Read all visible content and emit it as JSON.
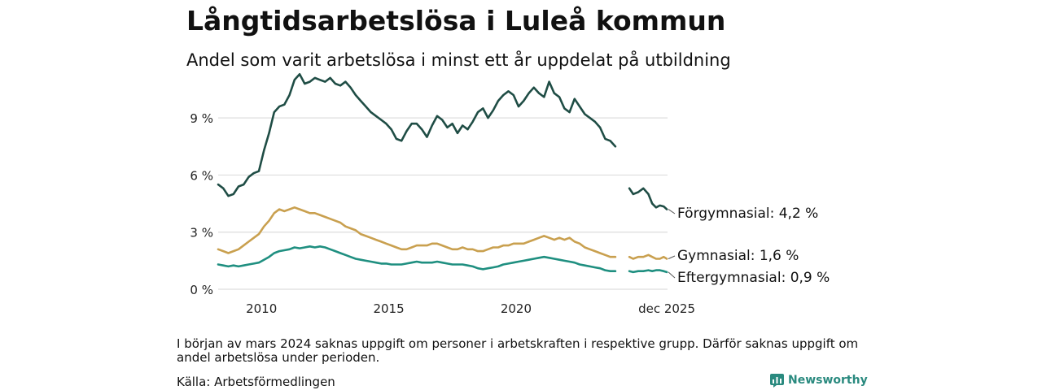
{
  "header": {
    "title": "Långtidsarbetslösa i Luleå kommun",
    "subtitle": "Andel som varit arbetslösa i minst ett år uppdelat på utbildning"
  },
  "footer": {
    "note": "I början av mars 2024 saknas uppgift om personer i arbetskraften i respektive grupp. Därför saknas uppgift om andel arbetslösa under perioden.",
    "source": "Källa: Arbetsförmedlingen",
    "brand": "Newsworthy"
  },
  "colors": {
    "forgymnasial": "#1f4d45",
    "gymnasial": "#c9a04f",
    "eftergymnasial": "#1f8f80",
    "grid": "#dddddd",
    "brand": "#2a8a7f"
  },
  "chart_data": {
    "type": "line",
    "title": "Långtidsarbetslösa i Luleå kommun",
    "xlabel": "",
    "ylabel": "",
    "xlim": [
      2008.3,
      2025.95
    ],
    "ylim": [
      0,
      10.5
    ],
    "y_ticks": [
      {
        "value": 0,
        "label": "0 %"
      },
      {
        "value": 3,
        "label": "3 %"
      },
      {
        "value": 6,
        "label": "6 %"
      },
      {
        "value": 9,
        "label": "9 %"
      }
    ],
    "x_ticks": [
      {
        "value": 2010,
        "label": "2010"
      },
      {
        "value": 2015,
        "label": "2015"
      },
      {
        "value": 2020,
        "label": "2020"
      },
      {
        "value": 2025.92,
        "label": "dec 2025"
      }
    ],
    "gap": [
      2024.05,
      2024.4
    ],
    "series": [
      {
        "name": "Förgymnasial",
        "end_label": "Förgymnasial: 4,2 %",
        "color_key": "forgymnasial",
        "points": [
          [
            2008.3,
            5.5
          ],
          [
            2008.5,
            5.3
          ],
          [
            2008.7,
            4.9
          ],
          [
            2008.9,
            5.0
          ],
          [
            2009.1,
            5.4
          ],
          [
            2009.3,
            5.5
          ],
          [
            2009.5,
            5.9
          ],
          [
            2009.7,
            6.1
          ],
          [
            2009.9,
            6.2
          ],
          [
            2010.1,
            7.3
          ],
          [
            2010.3,
            8.2
          ],
          [
            2010.5,
            9.3
          ],
          [
            2010.7,
            9.6
          ],
          [
            2010.9,
            9.7
          ],
          [
            2011.1,
            10.2
          ],
          [
            2011.3,
            11.0
          ],
          [
            2011.5,
            11.3
          ],
          [
            2011.7,
            10.8
          ],
          [
            2011.9,
            10.9
          ],
          [
            2012.1,
            11.1
          ],
          [
            2012.3,
            11.0
          ],
          [
            2012.5,
            10.9
          ],
          [
            2012.7,
            11.1
          ],
          [
            2012.9,
            10.8
          ],
          [
            2013.1,
            10.7
          ],
          [
            2013.3,
            10.9
          ],
          [
            2013.5,
            10.6
          ],
          [
            2013.7,
            10.2
          ],
          [
            2013.9,
            9.9
          ],
          [
            2014.1,
            9.6
          ],
          [
            2014.3,
            9.3
          ],
          [
            2014.5,
            9.1
          ],
          [
            2014.7,
            8.9
          ],
          [
            2014.9,
            8.7
          ],
          [
            2015.1,
            8.4
          ],
          [
            2015.3,
            7.9
          ],
          [
            2015.5,
            7.8
          ],
          [
            2015.7,
            8.3
          ],
          [
            2015.9,
            8.7
          ],
          [
            2016.1,
            8.7
          ],
          [
            2016.3,
            8.4
          ],
          [
            2016.5,
            8.0
          ],
          [
            2016.7,
            8.6
          ],
          [
            2016.9,
            9.1
          ],
          [
            2017.1,
            8.9
          ],
          [
            2017.3,
            8.5
          ],
          [
            2017.5,
            8.7
          ],
          [
            2017.7,
            8.2
          ],
          [
            2017.9,
            8.6
          ],
          [
            2018.1,
            8.4
          ],
          [
            2018.3,
            8.8
          ],
          [
            2018.5,
            9.3
          ],
          [
            2018.7,
            9.5
          ],
          [
            2018.9,
            9.0
          ],
          [
            2019.1,
            9.4
          ],
          [
            2019.3,
            9.9
          ],
          [
            2019.5,
            10.2
          ],
          [
            2019.7,
            10.4
          ],
          [
            2019.9,
            10.2
          ],
          [
            2020.1,
            9.6
          ],
          [
            2020.3,
            9.9
          ],
          [
            2020.5,
            10.3
          ],
          [
            2020.7,
            10.6
          ],
          [
            2020.9,
            10.3
          ],
          [
            2021.1,
            10.1
          ],
          [
            2021.3,
            10.9
          ],
          [
            2021.5,
            10.3
          ],
          [
            2021.7,
            10.1
          ],
          [
            2021.9,
            9.5
          ],
          [
            2022.1,
            9.3
          ],
          [
            2022.3,
            10.0
          ],
          [
            2022.5,
            9.6
          ],
          [
            2022.7,
            9.2
          ],
          [
            2022.9,
            9.0
          ],
          [
            2023.1,
            8.8
          ],
          [
            2023.3,
            8.5
          ],
          [
            2023.5,
            7.9
          ],
          [
            2023.7,
            7.8
          ],
          [
            2023.9,
            7.5
          ],
          [
            null,
            null
          ],
          [
            2024.45,
            5.3
          ],
          [
            2024.6,
            5.0
          ],
          [
            2024.8,
            5.1
          ],
          [
            2025.0,
            5.3
          ],
          [
            2025.2,
            5.0
          ],
          [
            2025.35,
            4.5
          ],
          [
            2025.5,
            4.3
          ],
          [
            2025.65,
            4.4
          ],
          [
            2025.8,
            4.35
          ],
          [
            2025.92,
            4.2
          ]
        ]
      },
      {
        "name": "Gymnasial",
        "end_label": "Gymnasial: 1,6 %",
        "color_key": "gymnasial",
        "points": [
          [
            2008.3,
            2.1
          ],
          [
            2008.5,
            2.0
          ],
          [
            2008.7,
            1.9
          ],
          [
            2008.9,
            2.0
          ],
          [
            2009.1,
            2.1
          ],
          [
            2009.3,
            2.3
          ],
          [
            2009.5,
            2.5
          ],
          [
            2009.7,
            2.7
          ],
          [
            2009.9,
            2.9
          ],
          [
            2010.1,
            3.3
          ],
          [
            2010.3,
            3.6
          ],
          [
            2010.5,
            4.0
          ],
          [
            2010.7,
            4.2
          ],
          [
            2010.9,
            4.1
          ],
          [
            2011.1,
            4.2
          ],
          [
            2011.3,
            4.3
          ],
          [
            2011.5,
            4.2
          ],
          [
            2011.7,
            4.1
          ],
          [
            2011.9,
            4.0
          ],
          [
            2012.1,
            4.0
          ],
          [
            2012.3,
            3.9
          ],
          [
            2012.5,
            3.8
          ],
          [
            2012.7,
            3.7
          ],
          [
            2012.9,
            3.6
          ],
          [
            2013.1,
            3.5
          ],
          [
            2013.3,
            3.3
          ],
          [
            2013.5,
            3.2
          ],
          [
            2013.7,
            3.1
          ],
          [
            2013.9,
            2.9
          ],
          [
            2014.1,
            2.8
          ],
          [
            2014.3,
            2.7
          ],
          [
            2014.5,
            2.6
          ],
          [
            2014.7,
            2.5
          ],
          [
            2014.9,
            2.4
          ],
          [
            2015.1,
            2.3
          ],
          [
            2015.3,
            2.2
          ],
          [
            2015.5,
            2.1
          ],
          [
            2015.7,
            2.1
          ],
          [
            2015.9,
            2.2
          ],
          [
            2016.1,
            2.3
          ],
          [
            2016.3,
            2.3
          ],
          [
            2016.5,
            2.3
          ],
          [
            2016.7,
            2.4
          ],
          [
            2016.9,
            2.4
          ],
          [
            2017.1,
            2.3
          ],
          [
            2017.3,
            2.2
          ],
          [
            2017.5,
            2.1
          ],
          [
            2017.7,
            2.1
          ],
          [
            2017.9,
            2.2
          ],
          [
            2018.1,
            2.1
          ],
          [
            2018.3,
            2.1
          ],
          [
            2018.5,
            2.0
          ],
          [
            2018.7,
            2.0
          ],
          [
            2018.9,
            2.1
          ],
          [
            2019.1,
            2.2
          ],
          [
            2019.3,
            2.2
          ],
          [
            2019.5,
            2.3
          ],
          [
            2019.7,
            2.3
          ],
          [
            2019.9,
            2.4
          ],
          [
            2020.1,
            2.4
          ],
          [
            2020.3,
            2.4
          ],
          [
            2020.5,
            2.5
          ],
          [
            2020.7,
            2.6
          ],
          [
            2020.9,
            2.7
          ],
          [
            2021.1,
            2.8
          ],
          [
            2021.3,
            2.7
          ],
          [
            2021.5,
            2.6
          ],
          [
            2021.7,
            2.7
          ],
          [
            2021.9,
            2.6
          ],
          [
            2022.1,
            2.7
          ],
          [
            2022.3,
            2.5
          ],
          [
            2022.5,
            2.4
          ],
          [
            2022.7,
            2.2
          ],
          [
            2022.9,
            2.1
          ],
          [
            2023.1,
            2.0
          ],
          [
            2023.3,
            1.9
          ],
          [
            2023.5,
            1.8
          ],
          [
            2023.7,
            1.7
          ],
          [
            2023.9,
            1.7
          ],
          [
            null,
            null
          ],
          [
            2024.45,
            1.7
          ],
          [
            2024.6,
            1.6
          ],
          [
            2024.8,
            1.7
          ],
          [
            2025.0,
            1.7
          ],
          [
            2025.2,
            1.8
          ],
          [
            2025.35,
            1.7
          ],
          [
            2025.5,
            1.6
          ],
          [
            2025.65,
            1.6
          ],
          [
            2025.8,
            1.7
          ],
          [
            2025.92,
            1.6
          ]
        ]
      },
      {
        "name": "Eftergymnasial",
        "end_label": "Eftergymnasial: 0,9 %",
        "color_key": "eftergymnasial",
        "points": [
          [
            2008.3,
            1.3
          ],
          [
            2008.5,
            1.25
          ],
          [
            2008.7,
            1.2
          ],
          [
            2008.9,
            1.25
          ],
          [
            2009.1,
            1.2
          ],
          [
            2009.3,
            1.25
          ],
          [
            2009.5,
            1.3
          ],
          [
            2009.7,
            1.35
          ],
          [
            2009.9,
            1.4
          ],
          [
            2010.1,
            1.55
          ],
          [
            2010.3,
            1.7
          ],
          [
            2010.5,
            1.9
          ],
          [
            2010.7,
            2.0
          ],
          [
            2010.9,
            2.05
          ],
          [
            2011.1,
            2.1
          ],
          [
            2011.3,
            2.2
          ],
          [
            2011.5,
            2.15
          ],
          [
            2011.7,
            2.2
          ],
          [
            2011.9,
            2.25
          ],
          [
            2012.1,
            2.2
          ],
          [
            2012.3,
            2.25
          ],
          [
            2012.5,
            2.2
          ],
          [
            2012.7,
            2.1
          ],
          [
            2012.9,
            2.0
          ],
          [
            2013.1,
            1.9
          ],
          [
            2013.3,
            1.8
          ],
          [
            2013.5,
            1.7
          ],
          [
            2013.7,
            1.6
          ],
          [
            2013.9,
            1.55
          ],
          [
            2014.1,
            1.5
          ],
          [
            2014.3,
            1.45
          ],
          [
            2014.5,
            1.4
          ],
          [
            2014.7,
            1.35
          ],
          [
            2014.9,
            1.35
          ],
          [
            2015.1,
            1.3
          ],
          [
            2015.3,
            1.3
          ],
          [
            2015.5,
            1.3
          ],
          [
            2015.7,
            1.35
          ],
          [
            2015.9,
            1.4
          ],
          [
            2016.1,
            1.45
          ],
          [
            2016.3,
            1.4
          ],
          [
            2016.5,
            1.4
          ],
          [
            2016.7,
            1.4
          ],
          [
            2016.9,
            1.45
          ],
          [
            2017.1,
            1.4
          ],
          [
            2017.3,
            1.35
          ],
          [
            2017.5,
            1.3
          ],
          [
            2017.7,
            1.3
          ],
          [
            2017.9,
            1.3
          ],
          [
            2018.1,
            1.25
          ],
          [
            2018.3,
            1.2
          ],
          [
            2018.5,
            1.1
          ],
          [
            2018.7,
            1.05
          ],
          [
            2018.9,
            1.1
          ],
          [
            2019.1,
            1.15
          ],
          [
            2019.3,
            1.2
          ],
          [
            2019.5,
            1.3
          ],
          [
            2019.7,
            1.35
          ],
          [
            2019.9,
            1.4
          ],
          [
            2020.1,
            1.45
          ],
          [
            2020.3,
            1.5
          ],
          [
            2020.5,
            1.55
          ],
          [
            2020.7,
            1.6
          ],
          [
            2020.9,
            1.65
          ],
          [
            2021.1,
            1.7
          ],
          [
            2021.3,
            1.65
          ],
          [
            2021.5,
            1.6
          ],
          [
            2021.7,
            1.55
          ],
          [
            2021.9,
            1.5
          ],
          [
            2022.1,
            1.45
          ],
          [
            2022.3,
            1.4
          ],
          [
            2022.5,
            1.3
          ],
          [
            2022.7,
            1.25
          ],
          [
            2022.9,
            1.2
          ],
          [
            2023.1,
            1.15
          ],
          [
            2023.3,
            1.1
          ],
          [
            2023.5,
            1.0
          ],
          [
            2023.7,
            0.95
          ],
          [
            2023.9,
            0.95
          ],
          [
            null,
            null
          ],
          [
            2024.45,
            0.95
          ],
          [
            2024.6,
            0.9
          ],
          [
            2024.8,
            0.95
          ],
          [
            2025.0,
            0.95
          ],
          [
            2025.2,
            1.0
          ],
          [
            2025.35,
            0.95
          ],
          [
            2025.5,
            1.0
          ],
          [
            2025.65,
            1.0
          ],
          [
            2025.8,
            0.95
          ],
          [
            2025.92,
            0.9
          ]
        ]
      }
    ]
  }
}
